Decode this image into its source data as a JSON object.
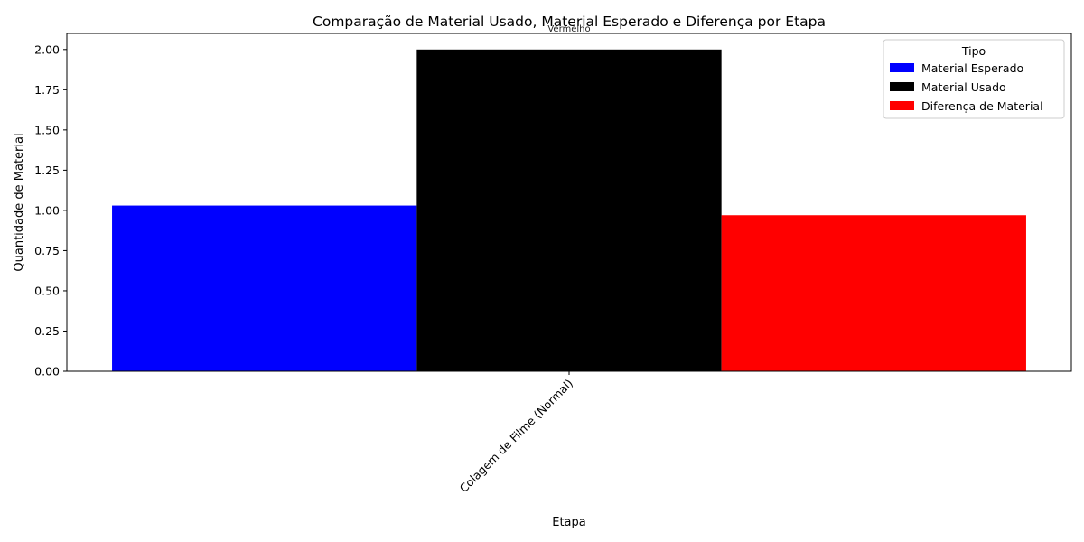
{
  "chart_data": {
    "type": "bar",
    "title": "Comparação de Material Usado, Material Esperado e Diferença por Etapa",
    "xlabel": "Etapa",
    "ylabel": "Quantidade de Material",
    "categories": [
      "Colagem de Filme (Normal)"
    ],
    "series": [
      {
        "name": "Material Esperado",
        "values": [
          1.03
        ],
        "color": "#0000ff"
      },
      {
        "name": "Material Usado",
        "values": [
          2.0
        ],
        "color": "#000000"
      },
      {
        "name": "Diferença de Material",
        "values": [
          0.97
        ],
        "color": "#ff0000"
      }
    ],
    "ylim": [
      0,
      2.1
    ],
    "yticks": [
      "0.00",
      "0.25",
      "0.50",
      "0.75",
      "1.00",
      "1.25",
      "1.50",
      "1.75",
      "2.00"
    ],
    "annotation": "Vermelho",
    "legend": {
      "title": "Tipo",
      "placement": "upper right"
    },
    "grid": false
  }
}
